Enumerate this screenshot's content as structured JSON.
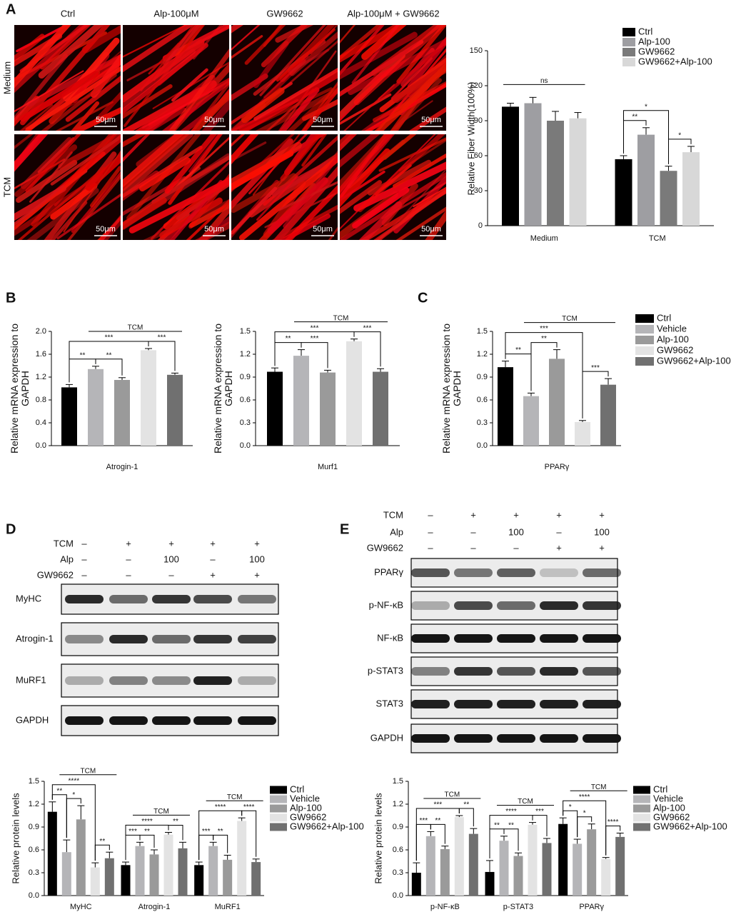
{
  "panel_labels": [
    "A",
    "B",
    "C",
    "D",
    "E"
  ],
  "microscopy": {
    "columns": [
      "Ctrl",
      "Alp-100μM",
      "GW9662",
      "Alp-100μM + GW9662"
    ],
    "rows": [
      "Medium",
      "TCM"
    ],
    "scale_bar": "50μm"
  },
  "blot_d": {
    "conditions": [
      {
        "label": "TCM",
        "lanes": [
          "–",
          "+",
          "+",
          "+",
          "+"
        ]
      },
      {
        "label": "Alp",
        "lanes": [
          "–",
          "–",
          "100",
          "–",
          "100"
        ]
      },
      {
        "label": "GW9662",
        "lanes": [
          "–",
          "–",
          "–",
          "+",
          "+"
        ]
      }
    ],
    "bands": [
      "MyHC",
      "Atrogin-1",
      "MuRF1",
      "GAPDH"
    ]
  },
  "blot_e": {
    "conditions": [
      {
        "label": "TCM",
        "lanes": [
          "–",
          "+",
          "+",
          "+",
          "+"
        ]
      },
      {
        "label": "Alp",
        "lanes": [
          "–",
          "–",
          "100",
          "–",
          "100"
        ]
      },
      {
        "label": "GW9662",
        "lanes": [
          "–",
          "–",
          "–",
          "+",
          "+"
        ]
      }
    ],
    "bands": [
      "PPARγ",
      "p-NF-κB",
      "NF-κB",
      "p-STAT3",
      "STAT3",
      "GAPDH"
    ]
  },
  "chart_data": [
    {
      "type": "bar",
      "ylabel": "Relative Fiber Width(100%)",
      "categories": [
        "Medium",
        "TCM"
      ],
      "series": [
        {
          "name": "Ctrl",
          "color": "#000000",
          "values": [
            102,
            57
          ],
          "errors": [
            3,
            3
          ]
        },
        {
          "name": "Alp-100",
          "color": "#9e9ea2",
          "values": [
            105,
            78
          ],
          "errors": [
            5,
            6
          ]
        },
        {
          "name": "GW9662",
          "color": "#7a7a7a",
          "values": [
            90,
            47
          ],
          "errors": [
            8,
            4
          ]
        },
        {
          "name": "GW9662+Alp-100",
          "color": "#d8d8d8",
          "values": [
            92,
            63
          ],
          "errors": [
            5,
            5
          ]
        }
      ],
      "ylim": [
        0,
        150
      ],
      "yticks": [
        0,
        30,
        60,
        90,
        120,
        150
      ],
      "legend": "top-right",
      "significance": [
        [
          "ns"
        ],
        [
          "**",
          "*",
          "*"
        ]
      ]
    },
    {
      "type": "bar",
      "ylabel": "Relative mRNA expression to GAPDH",
      "categories": [
        "Atrogin-1"
      ],
      "series": [
        {
          "color": "#000000",
          "values": [
            1.02
          ],
          "errors": [
            0.05
          ]
        },
        {
          "color": "#b5b5b8",
          "values": [
            1.34
          ],
          "errors": [
            0.05
          ]
        },
        {
          "color": "#9a9a9a",
          "values": [
            1.15
          ],
          "errors": [
            0.04
          ]
        },
        {
          "color": "#e3e3e3",
          "values": [
            1.67
          ],
          "errors": [
            0.03
          ]
        },
        {
          "color": "#707070",
          "values": [
            1.24
          ],
          "errors": [
            0.03
          ]
        }
      ],
      "ylim": [
        0,
        2
      ],
      "yticks": [
        {
          "value": 0,
          "label": "0.0"
        },
        0.4,
        0.8,
        1.2,
        1.6,
        {
          "value": 2,
          "label": "2.0"
        }
      ],
      "group_label": "TCM",
      "significance": [
        [
          "**",
          "**",
          "***",
          "***"
        ]
      ]
    },
    {
      "type": "bar",
      "ylabel": "Relative mRNA expression to GAPDH",
      "categories": [
        "Murf1"
      ],
      "series": [
        {
          "color": "#000000",
          "values": [
            0.97
          ],
          "errors": [
            0.05
          ]
        },
        {
          "color": "#b5b5b8",
          "values": [
            1.18
          ],
          "errors": [
            0.08
          ]
        },
        {
          "color": "#9a9a9a",
          "values": [
            0.96
          ],
          "errors": [
            0.03
          ]
        },
        {
          "color": "#e3e3e3",
          "values": [
            1.37
          ],
          "errors": [
            0.03
          ]
        },
        {
          "color": "#707070",
          "values": [
            0.97
          ],
          "errors": [
            0.04
          ]
        }
      ],
      "ylim": [
        0,
        1.5
      ],
      "yticks": [
        {
          "value": 0,
          "label": "0.0"
        },
        0.3,
        0.6,
        0.9,
        1.2,
        1.5
      ],
      "group_label": "TCM",
      "significance": [
        [
          "**",
          "***",
          "***",
          "***"
        ]
      ]
    },
    {
      "type": "bar",
      "ylabel": "Relative mRNA expression to GAPDH",
      "categories": [
        "PPARγ"
      ],
      "series": [
        {
          "name": "Ctrl",
          "color": "#000000",
          "values": [
            1.03
          ],
          "errors": [
            0.08
          ]
        },
        {
          "name": "Vehicle",
          "color": "#b5b5b8",
          "values": [
            0.65
          ],
          "errors": [
            0.04
          ]
        },
        {
          "name": "Alp-100",
          "color": "#9a9a9a",
          "values": [
            1.14
          ],
          "errors": [
            0.12
          ]
        },
        {
          "name": "GW9662",
          "color": "#e3e3e3",
          "values": [
            0.31
          ],
          "errors": [
            0.02
          ]
        },
        {
          "name": "GW9662+Alp-100",
          "color": "#707070",
          "values": [
            0.8
          ],
          "errors": [
            0.08
          ]
        }
      ],
      "ylim": [
        0,
        1.5
      ],
      "yticks": [
        {
          "value": 0,
          "label": "0.0"
        },
        0.3,
        0.6,
        0.9,
        1.2,
        1.5
      ],
      "legend": "right",
      "group_label": "TCM",
      "significance": [
        [
          "**",
          "**",
          "***",
          "***"
        ]
      ]
    },
    {
      "type": "bar",
      "ylabel": "Relative protein levels",
      "categories": [
        "MyHC",
        "Atrogin-1",
        "MuRF1"
      ],
      "series": [
        {
          "name": "Ctrl",
          "color": "#000000",
          "values": [
            1.1,
            0.4,
            0.4
          ],
          "errors": [
            0.13,
            0.04,
            0.04
          ]
        },
        {
          "name": "Vehicle",
          "color": "#b5b5b8",
          "values": [
            0.57,
            0.65,
            0.65
          ],
          "errors": [
            0.16,
            0.05,
            0.05
          ]
        },
        {
          "name": "Alp-100",
          "color": "#9a9a9a",
          "values": [
            1.0,
            0.54,
            0.47
          ],
          "errors": [
            0.18,
            0.06,
            0.06
          ]
        },
        {
          "name": "GW9662",
          "color": "#e3e3e3",
          "values": [
            0.37,
            0.8,
            0.98
          ],
          "errors": [
            0.06,
            0.03,
            0.04
          ]
        },
        {
          "name": "GW9662+Alp-100",
          "color": "#707070",
          "values": [
            0.49,
            0.62,
            0.44
          ],
          "errors": [
            0.08,
            0.08,
            0.04
          ]
        }
      ],
      "ylim": [
        0,
        1.5
      ],
      "yticks": [
        {
          "value": 0,
          "label": "0.0"
        },
        0.3,
        0.6,
        0.9,
        1.2,
        1.5
      ],
      "legend": "right",
      "group_label": "TCM",
      "significance": [
        [
          "**",
          "*",
          "****",
          "**"
        ],
        [
          "***",
          "**",
          "****",
          "**"
        ],
        [
          "***",
          "**",
          "****",
          "****"
        ]
      ]
    },
    {
      "type": "bar",
      "ylabel": "Relative protein levels",
      "categories": [
        "p-NF-κB",
        "p-STAT3",
        "PPARγ"
      ],
      "series": [
        {
          "name": "Ctrl",
          "color": "#000000",
          "values": [
            0.3,
            0.31,
            0.94
          ],
          "errors": [
            0.13,
            0.15,
            0.08
          ]
        },
        {
          "name": "Vehicle",
          "color": "#b5b5b8",
          "values": [
            0.78,
            0.72,
            0.68
          ],
          "errors": [
            0.06,
            0.06,
            0.06
          ]
        },
        {
          "name": "Alp-100",
          "color": "#9a9a9a",
          "values": [
            0.61,
            0.52,
            0.87
          ],
          "errors": [
            0.04,
            0.04,
            0.07
          ]
        },
        {
          "name": "GW9662",
          "color": "#e3e3e3",
          "values": [
            1.03,
            0.93,
            0.48
          ],
          "errors": [
            0.02,
            0.03,
            0.02
          ]
        },
        {
          "name": "GW9662+Alp-100",
          "color": "#707070",
          "values": [
            0.81,
            0.69,
            0.77
          ],
          "errors": [
            0.07,
            0.06,
            0.05
          ]
        }
      ],
      "ylim": [
        0,
        1.5
      ],
      "yticks": [
        {
          "value": 0,
          "label": "0.0"
        },
        0.3,
        0.6,
        0.9,
        1.2,
        1.5
      ],
      "legend": "right",
      "group_label": "TCM",
      "significance": [
        [
          "***",
          "**",
          "***",
          "**"
        ],
        [
          "**",
          "**",
          "****",
          "***"
        ],
        [
          "*",
          "*",
          "****",
          "****"
        ]
      ]
    }
  ]
}
